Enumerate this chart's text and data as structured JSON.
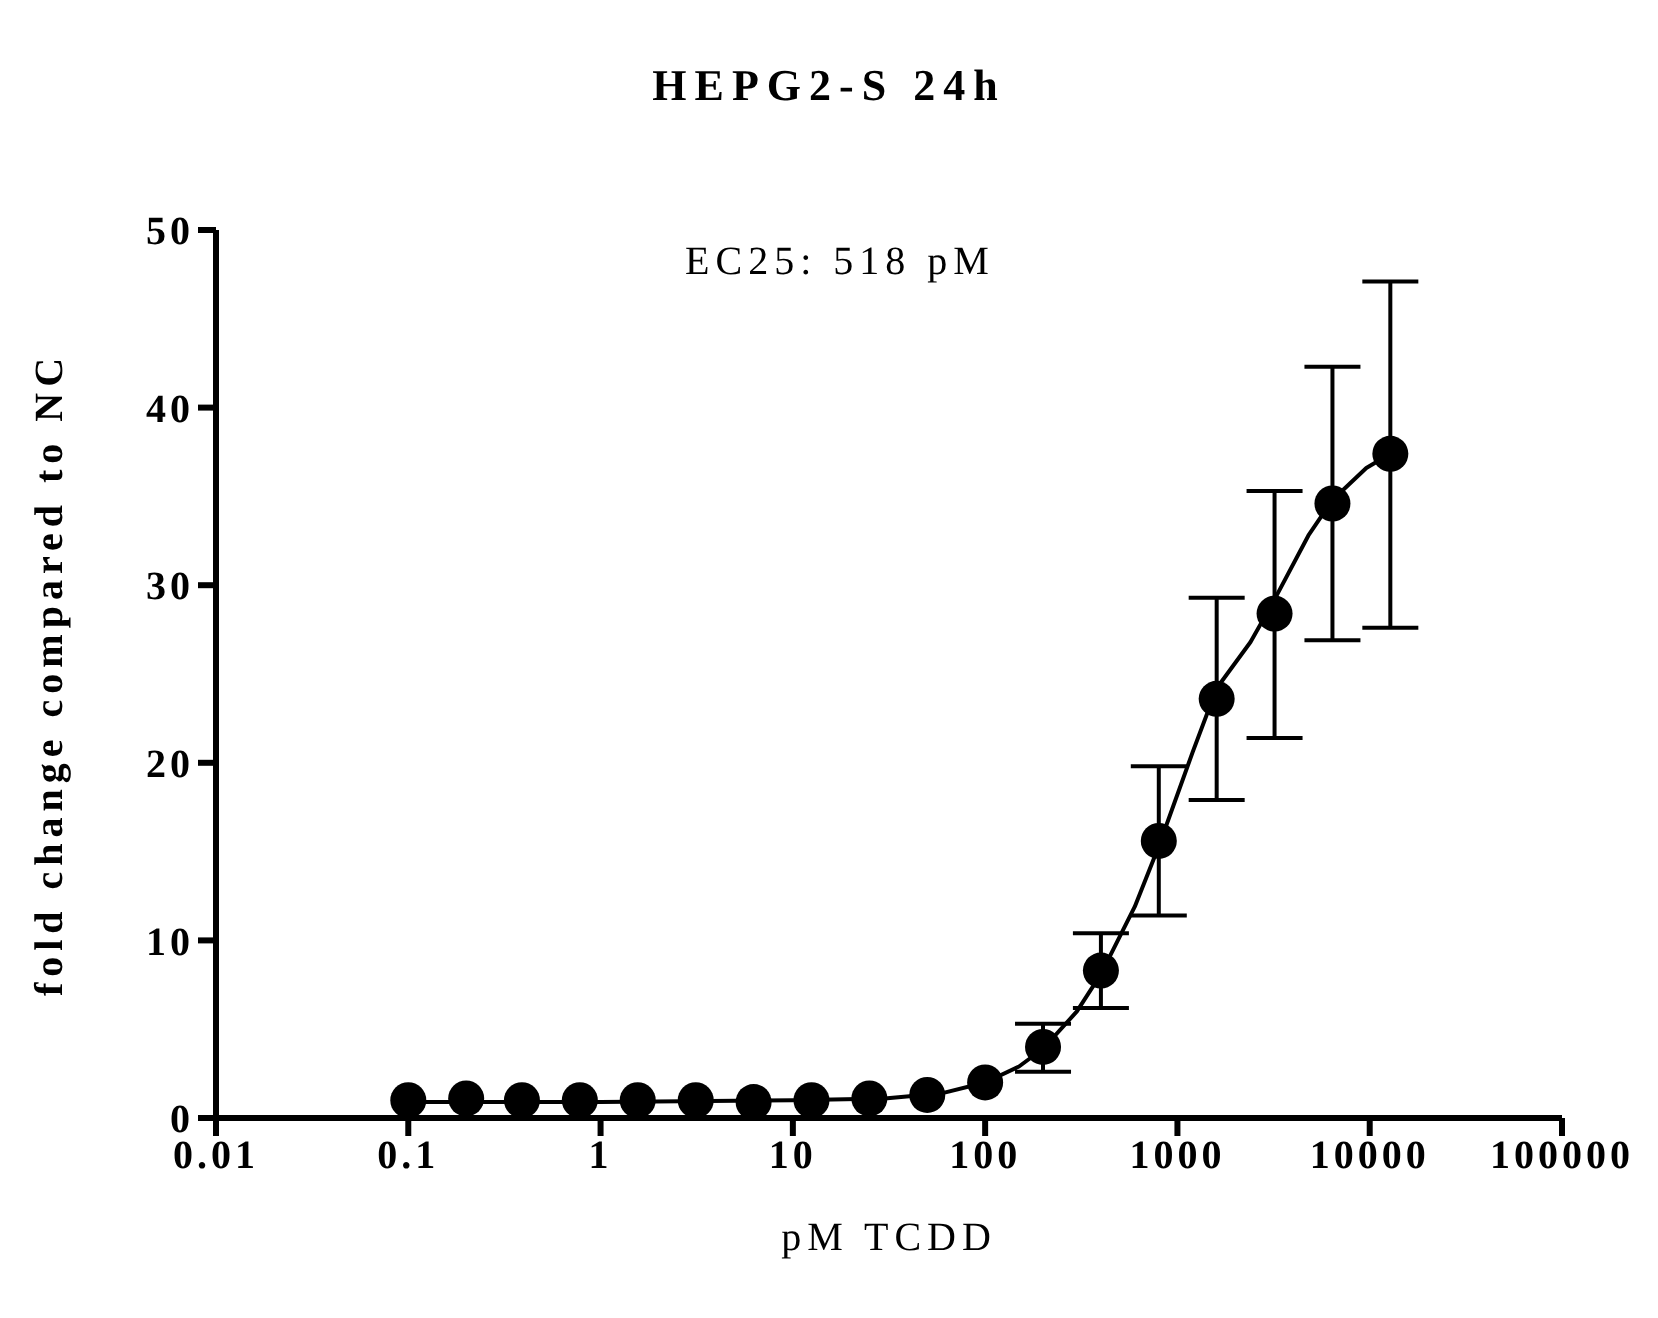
{
  "chart_data": {
    "type": "scatter",
    "title": "HEPG2-S 24h",
    "xlabel": "pM TCDD",
    "ylabel": "fold change compared to NC",
    "annotations": [
      "EC25: 518 pM"
    ],
    "log": "x",
    "xlim": [
      0.01,
      100000
    ],
    "xticks": [
      0.01,
      0.1,
      1,
      10,
      100,
      1000,
      10000,
      100000
    ],
    "ylim": [
      0,
      50
    ],
    "yticks": [
      0,
      10,
      20,
      30,
      40,
      50
    ],
    "marker": "circle",
    "series": [
      {
        "color": "#000000",
        "x": [
          0.1,
          0.2,
          0.39,
          0.78,
          1.56,
          3.125,
          6.25,
          12.5,
          25,
          50,
          100,
          200,
          400,
          800,
          1600,
          3200,
          6400,
          12800
        ],
        "values": [
          1,
          1.1,
          1,
          1,
          1,
          1,
          0.9,
          1,
          1.1,
          1.3,
          2,
          4,
          8.3,
          15.6,
          23.6,
          28.4,
          34.6,
          37.4
        ],
        "errors": [
          null,
          null,
          null,
          null,
          null,
          null,
          null,
          null,
          null,
          null,
          null,
          [
            2.6,
            5.3
          ],
          [
            6.2,
            10.4
          ],
          [
            11.4,
            19.8
          ],
          [
            17.9,
            29.3
          ],
          [
            21.4,
            35.3
          ],
          [
            26.9,
            42.3
          ],
          [
            27.6,
            47.1
          ]
        ]
      },
      {
        "type": "line",
        "color": "#000000",
        "marker": "none",
        "x": [
          0.1,
          1,
          10,
          30,
          60,
          100,
          150,
          200,
          300,
          400,
          600,
          800,
          1200,
          1600,
          2400,
          3200,
          4800,
          6400,
          9600,
          12800
        ],
        "values": [
          0.9,
          0.9,
          1,
          1.1,
          1.4,
          2,
          2.9,
          3.9,
          6,
          8.1,
          11.9,
          15.3,
          20.6,
          24.2,
          26.8,
          29.2,
          32.8,
          34.8,
          36.6,
          37.4
        ]
      }
    ]
  }
}
